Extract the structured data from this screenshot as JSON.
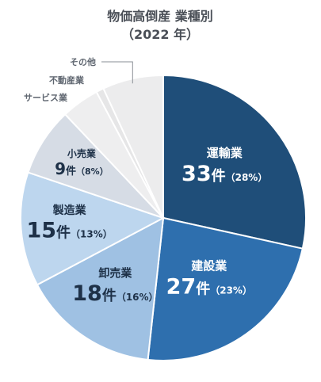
{
  "chart_data": {
    "type": "pie",
    "title": "物価高倒産 業種別",
    "subtitle": "（2022 年）",
    "count_unit": "件",
    "slices": [
      {
        "name": "運輸業",
        "value": 33,
        "percent": "28%",
        "color": "#1f4e79",
        "text_color": "#ffffff"
      },
      {
        "name": "建設業",
        "value": 27,
        "percent": "23%",
        "color": "#2e6fae",
        "text_color": "#ffffff"
      },
      {
        "name": "卸売業",
        "value": 18,
        "percent": "16%",
        "color": "#9fc1e3",
        "text_color": "#1e3148"
      },
      {
        "name": "製造業",
        "value": 15,
        "percent": "13%",
        "color": "#bdd6ee",
        "text_color": "#1e3148"
      },
      {
        "name": "小売業",
        "value": 9,
        "percent": "8%",
        "color": "#d6dce5",
        "text_color": "#1e3148"
      },
      {
        "name": "サービス業",
        "value": 5,
        "color": "#eeeeef"
      },
      {
        "name": "不動産業",
        "value": 1,
        "color": "#e6e6e7"
      },
      {
        "name": "その他",
        "value": 8,
        "color": "#ececed"
      }
    ],
    "legend": "none"
  }
}
